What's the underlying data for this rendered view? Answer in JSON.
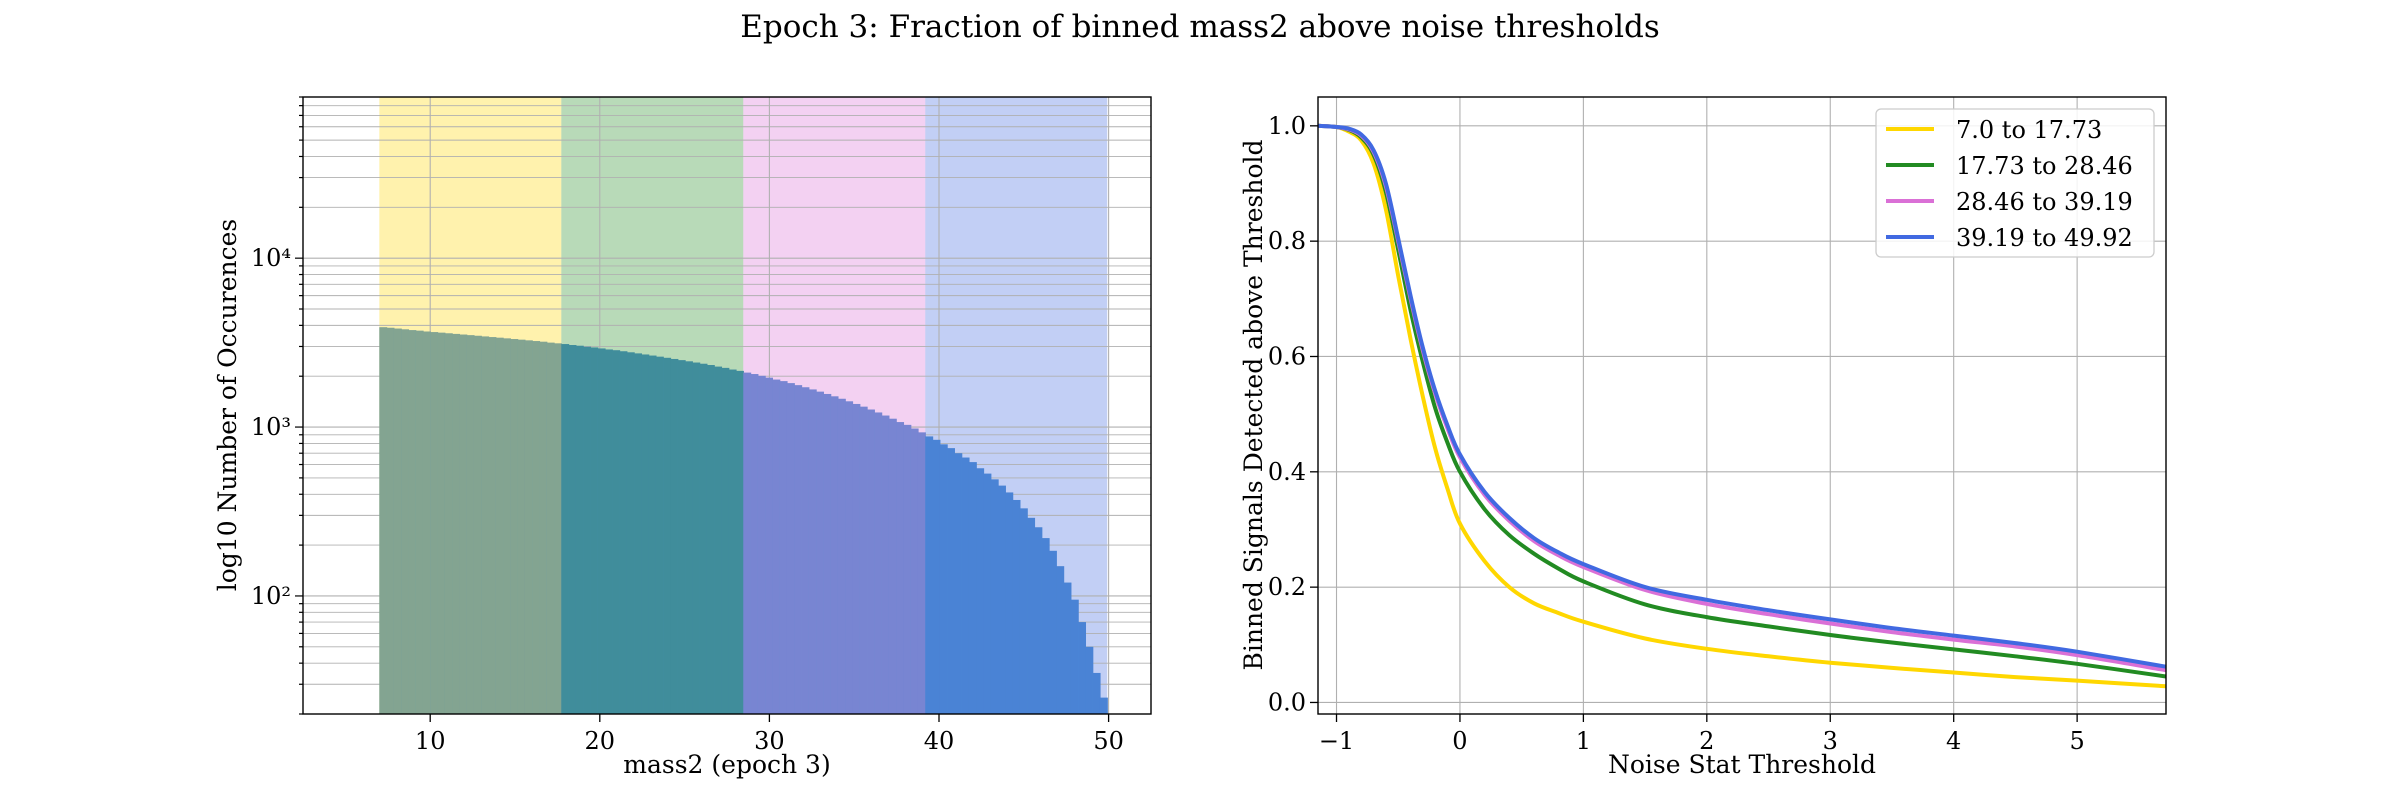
{
  "title": "Epoch 3: Fraction of binned mass2 above noise thresholds",
  "chart_data": [
    {
      "type": "bar",
      "xlabel": "mass2 (epoch 3)",
      "ylabel": "log10 Number of Occurences",
      "xlim": [
        2.5,
        52.5
      ],
      "ylim": [
        20,
        90000
      ],
      "yscale": "log",
      "x_ticks": [
        10,
        20,
        30,
        40,
        50
      ],
      "x_tick_labels": [
        "10",
        "20",
        "30",
        "40",
        "50"
      ],
      "y_ticks": [
        100,
        1000,
        10000
      ],
      "y_tick_labels": [
        "10²",
        "10³",
        "10⁴"
      ],
      "grid": true,
      "bins": {
        "start": 7.0,
        "end": 49.92,
        "count": 100
      },
      "values": [
        3900,
        3870,
        3830,
        3790,
        3750,
        3720,
        3680,
        3650,
        3620,
        3590,
        3560,
        3530,
        3500,
        3470,
        3440,
        3410,
        3380,
        3350,
        3320,
        3290,
        3260,
        3230,
        3200,
        3160,
        3130,
        3100,
        3060,
        3030,
        2990,
        2960,
        2920,
        2880,
        2850,
        2810,
        2770,
        2730,
        2690,
        2650,
        2610,
        2570,
        2530,
        2490,
        2450,
        2410,
        2370,
        2330,
        2280,
        2240,
        2190,
        2150,
        2100,
        2060,
        2010,
        1960,
        1910,
        1870,
        1820,
        1770,
        1720,
        1670,
        1620,
        1570,
        1520,
        1470,
        1420,
        1370,
        1320,
        1270,
        1220,
        1170,
        1120,
        1070,
        1030,
        980,
        930,
        880,
        840,
        790,
        750,
        700,
        660,
        620,
        570,
        530,
        490,
        450,
        410,
        370,
        330,
        290,
        255,
        220,
        185,
        150,
        120,
        95,
        70,
        50,
        35,
        25
      ],
      "bar_colors": {
        "uncovered": "#4e8fd0",
        "overlay": [
          "#ffd700",
          "#228b22",
          "#da70d6",
          "#4169e1"
        ],
        "overlay_alpha": 0.3
      },
      "regions": [
        {
          "from": 7.0,
          "to": 17.73,
          "color": "#ffd700"
        },
        {
          "from": 17.73,
          "to": 28.46,
          "color": "#228b22"
        },
        {
          "from": 28.46,
          "to": 39.19,
          "color": "#da70d6"
        },
        {
          "from": 39.19,
          "to": 49.92,
          "color": "#4169e1"
        }
      ]
    },
    {
      "type": "line",
      "xlabel": "Noise Stat Threshold",
      "ylabel": "Binned Signals Detected above Threshold",
      "xlim": [
        -1.15,
        5.72
      ],
      "ylim": [
        -0.02,
        1.05
      ],
      "x_ticks": [
        -1,
        0,
        1,
        2,
        3,
        4,
        5
      ],
      "x_tick_labels": [
        "−1",
        "0",
        "1",
        "2",
        "3",
        "4",
        "5"
      ],
      "y_ticks": [
        0,
        0.2,
        0.4,
        0.6,
        0.8,
        1.0
      ],
      "y_tick_labels": [
        "0.0",
        "0.2",
        "0.4",
        "0.6",
        "0.8",
        "1.0"
      ],
      "grid": true,
      "legend_position": "top-right",
      "x": [
        -1.15,
        -1.0,
        -0.9,
        -0.8,
        -0.7,
        -0.6,
        -0.5,
        -0.4,
        -0.3,
        -0.2,
        -0.1,
        0.0,
        0.2,
        0.4,
        0.6,
        0.8,
        1.0,
        1.5,
        2.0,
        2.5,
        3.0,
        3.5,
        4.0,
        4.5,
        5.0,
        5.72
      ],
      "series": [
        {
          "name": "7.0 to 17.73",
          "color": "#ffd700",
          "values": [
            1.0,
            0.998,
            0.99,
            0.975,
            0.935,
            0.855,
            0.74,
            0.63,
            0.53,
            0.44,
            0.37,
            0.31,
            0.245,
            0.2,
            0.172,
            0.155,
            0.14,
            0.111,
            0.093,
            0.08,
            0.069,
            0.06,
            0.052,
            0.044,
            0.038,
            0.028
          ]
        },
        {
          "name": "17.73 to 28.46",
          "color": "#228b22",
          "values": [
            1.0,
            0.998,
            0.993,
            0.98,
            0.95,
            0.885,
            0.785,
            0.68,
            0.59,
            0.51,
            0.45,
            0.4,
            0.335,
            0.29,
            0.258,
            0.232,
            0.21,
            0.17,
            0.148,
            0.132,
            0.117,
            0.104,
            0.092,
            0.08,
            0.067,
            0.045
          ]
        },
        {
          "name": "28.46 to 39.19",
          "color": "#da70d6",
          "values": [
            1.0,
            0.998,
            0.994,
            0.983,
            0.955,
            0.895,
            0.8,
            0.7,
            0.61,
            0.535,
            0.475,
            0.425,
            0.36,
            0.315,
            0.28,
            0.255,
            0.235,
            0.195,
            0.171,
            0.153,
            0.137,
            0.122,
            0.109,
            0.097,
            0.082,
            0.056
          ]
        },
        {
          "name": "39.19 to 49.92",
          "color": "#4169e1",
          "values": [
            1.0,
            0.998,
            0.995,
            0.985,
            0.958,
            0.9,
            0.805,
            0.705,
            0.615,
            0.54,
            0.48,
            0.43,
            0.365,
            0.32,
            0.285,
            0.26,
            0.24,
            0.2,
            0.178,
            0.16,
            0.144,
            0.129,
            0.116,
            0.103,
            0.088,
            0.062
          ]
        }
      ]
    }
  ]
}
